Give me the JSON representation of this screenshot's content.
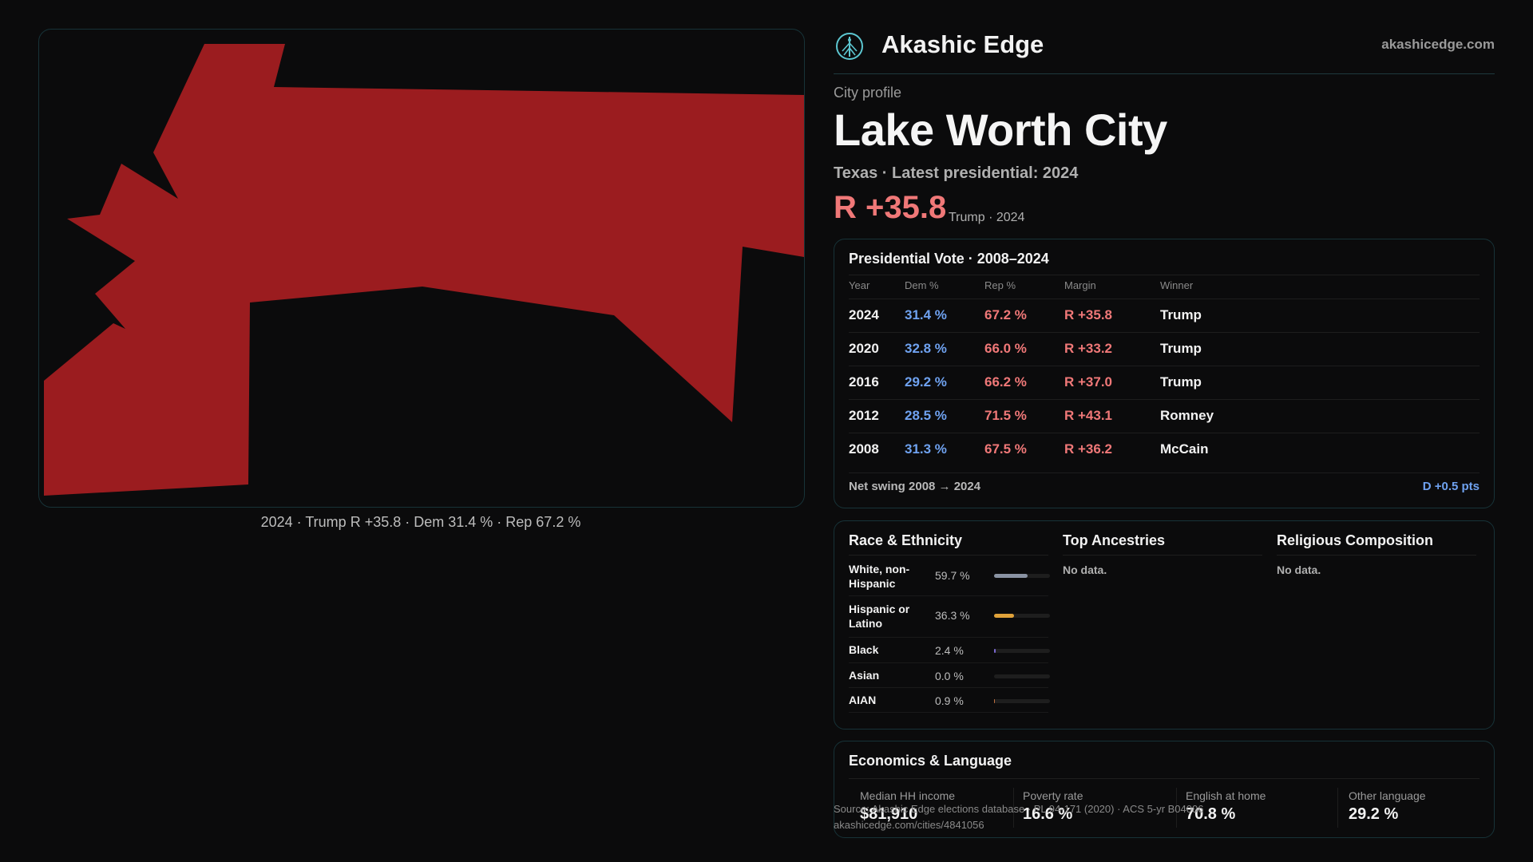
{
  "map": {
    "fill_color": "#9b1c1f",
    "caption": "2024 · Trump R +35.8 · Dem 31.4 % · Rep 67.2 %"
  },
  "brand": {
    "logo_icon": "tree-of-life-logo",
    "name": "Akashic Edge",
    "site": "akashicedge.com"
  },
  "profile": {
    "kicker": "City profile",
    "city": "Lake Worth City",
    "subtitle": "Texas · Latest presidential: 2024",
    "margin": "R +35.8",
    "margin_note": "Trump · 2024"
  },
  "vote": {
    "title": "Presidential Vote · 2008–2024",
    "headers": {
      "year": "Year",
      "dem": "Dem %",
      "rep": "Rep %",
      "margin": "Margin",
      "winner": "Winner"
    },
    "rows": [
      {
        "year": "2024",
        "dem": "31.4 %",
        "rep": "67.2 %",
        "margin": "R +35.8",
        "winner": "Trump"
      },
      {
        "year": "2020",
        "dem": "32.8 %",
        "rep": "66.0 %",
        "margin": "R +33.2",
        "winner": "Trump"
      },
      {
        "year": "2016",
        "dem": "29.2 %",
        "rep": "66.2 %",
        "margin": "R +37.0",
        "winner": "Trump"
      },
      {
        "year": "2012",
        "dem": "28.5 %",
        "rep": "71.5 %",
        "margin": "R +43.1",
        "winner": "Romney"
      },
      {
        "year": "2008",
        "dem": "31.3 %",
        "rep": "67.5 %",
        "margin": "R +36.2",
        "winner": "McCain"
      }
    ],
    "swing_label": "Net swing 2008 → 2024",
    "swing_value": "D +0.5 pts"
  },
  "demographics": {
    "race_title": "Race & Ethnicity",
    "race": [
      {
        "name": "White, non-Hispanic",
        "pct": "59.7 %",
        "share": 0.597,
        "color": "#8a93a3"
      },
      {
        "name": "Hispanic or Latino",
        "pct": "36.3 %",
        "share": 0.363,
        "color": "#e0a23a"
      },
      {
        "name": "Black",
        "pct": "2.4 %",
        "share": 0.024,
        "color": "#7b68d0"
      },
      {
        "name": "Asian",
        "pct": "0.0 %",
        "share": 0.0,
        "color": "#3aa0a0"
      },
      {
        "name": "AIAN",
        "pct": "0.9 %",
        "share": 0.009,
        "color": "#c07040"
      }
    ],
    "ancestry_title": "Top Ancestries",
    "ancestry_empty": "No data.",
    "religion_title": "Religious Composition",
    "religion_empty": "No data."
  },
  "economics": {
    "title": "Economics & Language",
    "stats": [
      {
        "label": "Median HH income",
        "value": "$81,910"
      },
      {
        "label": "Poverty rate",
        "value": "16.6 %"
      },
      {
        "label": "English at home",
        "value": "70.8 %"
      },
      {
        "label": "Other language",
        "value": "29.2 %"
      }
    ]
  },
  "source": {
    "line1": "Source: Akashic Edge elections database · PL 94-171 (2020) · ACS 5-yr B04006",
    "line2": "akashicedge.com/cities/4841056"
  }
}
